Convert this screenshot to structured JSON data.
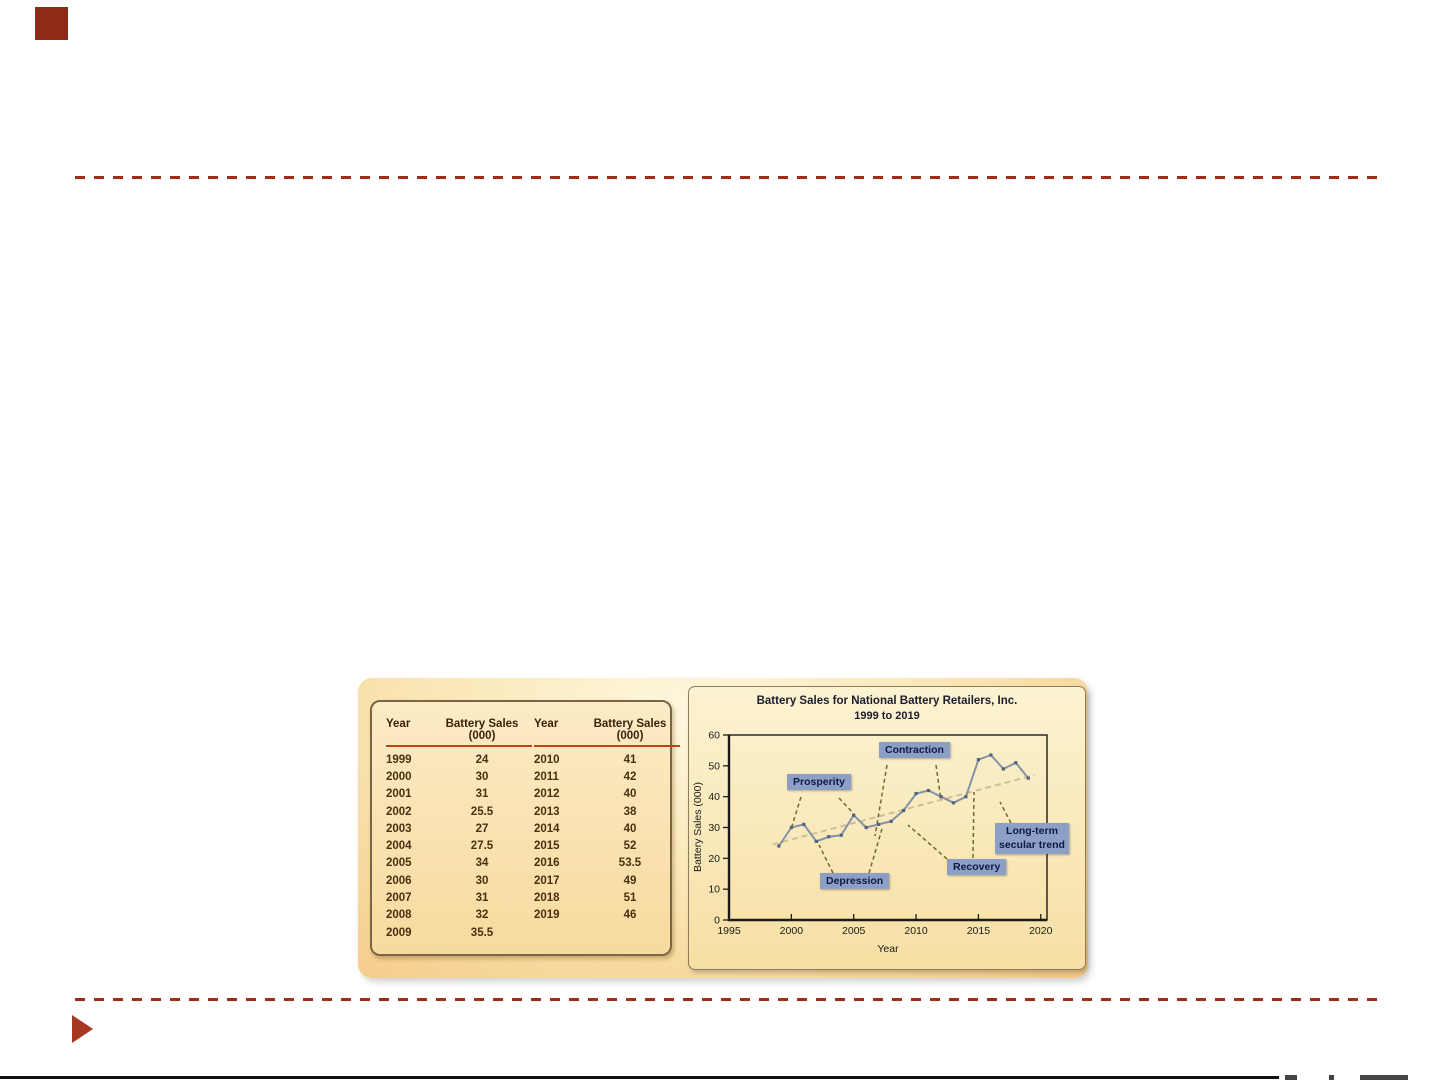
{
  "accent": {
    "dark_red": "#9E2D1C",
    "annotation_blue": "#8CA0C6"
  },
  "table": {
    "year_header": "Year",
    "sales_header": "Battery Sales (000)",
    "left_rows": [
      [
        "1999",
        "24"
      ],
      [
        "2000",
        "30"
      ],
      [
        "2001",
        "31"
      ],
      [
        "2002",
        "25.5"
      ],
      [
        "2003",
        "27"
      ],
      [
        "2004",
        "27.5"
      ],
      [
        "2005",
        "34"
      ],
      [
        "2006",
        "30"
      ],
      [
        "2007",
        "31"
      ],
      [
        "2008",
        "32"
      ],
      [
        "2009",
        "35.5"
      ]
    ],
    "right_rows": [
      [
        "2010",
        "41"
      ],
      [
        "2011",
        "42"
      ],
      [
        "2012",
        "40"
      ],
      [
        "2013",
        "38"
      ],
      [
        "2014",
        "40"
      ],
      [
        "2015",
        "52"
      ],
      [
        "2016",
        "53.5"
      ],
      [
        "2017",
        "49"
      ],
      [
        "2018",
        "51"
      ],
      [
        "2019",
        "46"
      ]
    ]
  },
  "chart": {
    "title_line1": "Battery Sales for National Battery Retailers, Inc.",
    "title_line2": "1999 to 2019",
    "xlabel": "Year",
    "ylabel": "Battery Sales (000)",
    "annotations": {
      "prosperity": "Prosperity",
      "contraction": "Contraction",
      "depression": "Depression",
      "recovery": "Recovery",
      "longterm_line1": "Long-term",
      "longterm_line2": "secular trend"
    }
  },
  "chart_data": {
    "type": "line",
    "title": "Battery Sales for National Battery Retailers, Inc., 1999 to 2019",
    "xlabel": "Year",
    "ylabel": "Battery Sales (000)",
    "x": [
      1999,
      2000,
      2001,
      2002,
      2003,
      2004,
      2005,
      2006,
      2007,
      2008,
      2009,
      2010,
      2011,
      2012,
      2013,
      2014,
      2015,
      2016,
      2017,
      2018,
      2019
    ],
    "series": [
      {
        "name": "Battery Sales (000)",
        "values": [
          24,
          30,
          31,
          25.5,
          27,
          27.5,
          34,
          30,
          31,
          32,
          35.5,
          41,
          42,
          40,
          38,
          40,
          52,
          53.5,
          49,
          51,
          46
        ]
      }
    ],
    "trend": {
      "x": [
        1998.5,
        2019.5
      ],
      "y": [
        24.5,
        47
      ]
    },
    "xticks": [
      1995,
      2000,
      2005,
      2010,
      2015,
      2020
    ],
    "yticks": [
      0,
      10,
      20,
      30,
      40,
      50,
      60
    ],
    "xlim": [
      1995,
      2020.5
    ],
    "ylim": [
      0,
      60
    ],
    "grid": false,
    "legend": "none",
    "annotations": [
      "Prosperity",
      "Contraction",
      "Depression",
      "Recovery",
      "Long-term secular trend"
    ]
  }
}
